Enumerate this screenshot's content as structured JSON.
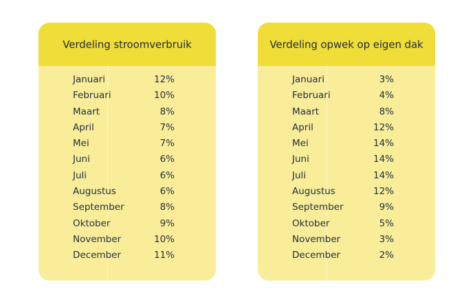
{
  "tables": [
    {
      "title": "Verdeling stroomverbruik",
      "rows": [
        {
          "month": "Januari",
          "value": "12%"
        },
        {
          "month": "Februari",
          "value": "10%"
        },
        {
          "month": "Maart",
          "value": "8%"
        },
        {
          "month": "April",
          "value": "7%"
        },
        {
          "month": "Mei",
          "value": "7%"
        },
        {
          "month": "Juni",
          "value": "6%"
        },
        {
          "month": "Juli",
          "value": "6%"
        },
        {
          "month": "Augustus",
          "value": "6%"
        },
        {
          "month": "September",
          "value": "8%"
        },
        {
          "month": "Oktober",
          "value": "9%"
        },
        {
          "month": "November",
          "value": "10%"
        },
        {
          "month": "December",
          "value": "11%"
        }
      ]
    },
    {
      "title": "Verdeling opwek op eigen dak",
      "rows": [
        {
          "month": "Januari",
          "value": "3%"
        },
        {
          "month": "Februari",
          "value": "4%"
        },
        {
          "month": "Maart",
          "value": "8%"
        },
        {
          "month": "April",
          "value": "12%"
        },
        {
          "month": "Mei",
          "value": "14%"
        },
        {
          "month": "Juni",
          "value": "14%"
        },
        {
          "month": "Juli",
          "value": "14%"
        },
        {
          "month": "Augustus",
          "value": "12%"
        },
        {
          "month": "September",
          "value": "9%"
        },
        {
          "month": "Oktober",
          "value": "5%"
        },
        {
          "month": "November",
          "value": "3%"
        },
        {
          "month": "December",
          "value": "2%"
        }
      ]
    }
  ],
  "colors": {
    "header": "#f0dd38",
    "body": "#faed9a",
    "text": "#1f2d3d"
  }
}
